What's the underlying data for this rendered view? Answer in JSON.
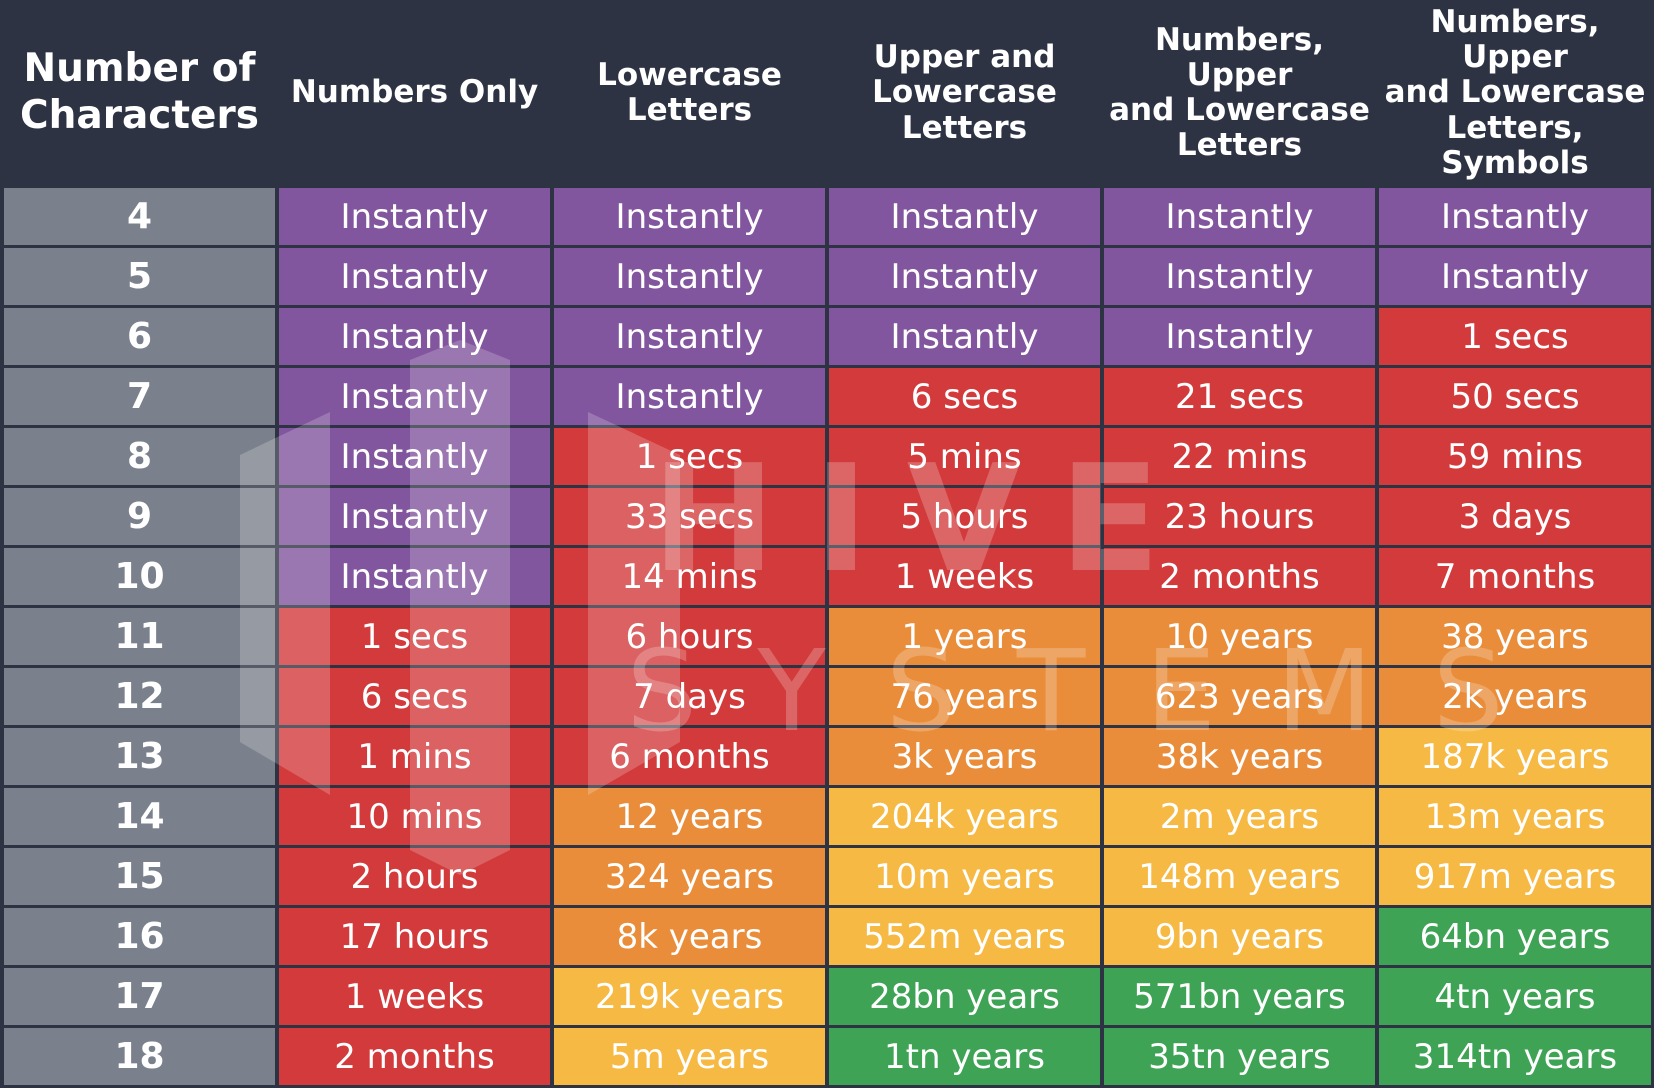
{
  "chart_data": {
    "type": "table",
    "columns": [
      "Number of\nCharacters",
      "Numbers Only",
      "Lowercase\nLetters",
      "Upper and\nLowercase\nLetters",
      "Numbers, Upper\nand Lowercase\nLetters",
      "Numbers, Upper\nand Lowercase\nLetters, Symbols"
    ],
    "rows": [
      {
        "chars": "4",
        "values": [
          "Instantly",
          "Instantly",
          "Instantly",
          "Instantly",
          "Instantly"
        ],
        "levels": [
          "instant",
          "instant",
          "instant",
          "instant",
          "instant"
        ]
      },
      {
        "chars": "5",
        "values": [
          "Instantly",
          "Instantly",
          "Instantly",
          "Instantly",
          "Instantly"
        ],
        "levels": [
          "instant",
          "instant",
          "instant",
          "instant",
          "instant"
        ]
      },
      {
        "chars": "6",
        "values": [
          "Instantly",
          "Instantly",
          "Instantly",
          "Instantly",
          "1 secs"
        ],
        "levels": [
          "instant",
          "instant",
          "instant",
          "instant",
          "red"
        ]
      },
      {
        "chars": "7",
        "values": [
          "Instantly",
          "Instantly",
          "6 secs",
          "21 secs",
          "50 secs"
        ],
        "levels": [
          "instant",
          "instant",
          "red",
          "red",
          "red"
        ]
      },
      {
        "chars": "8",
        "values": [
          "Instantly",
          "1 secs",
          "5 mins",
          "22 mins",
          "59 mins"
        ],
        "levels": [
          "instant",
          "red",
          "red",
          "red",
          "red"
        ]
      },
      {
        "chars": "9",
        "values": [
          "Instantly",
          "33 secs",
          "5 hours",
          "23 hours",
          "3 days"
        ],
        "levels": [
          "instant",
          "red",
          "red",
          "red",
          "red"
        ]
      },
      {
        "chars": "10",
        "values": [
          "Instantly",
          "14 mins",
          "1 weeks",
          "2 months",
          "7 months"
        ],
        "levels": [
          "instant",
          "red",
          "red",
          "red",
          "red"
        ]
      },
      {
        "chars": "11",
        "values": [
          "1 secs",
          "6 hours",
          "1 years",
          "10 years",
          "38 years"
        ],
        "levels": [
          "red",
          "red",
          "orange",
          "orange",
          "orange"
        ]
      },
      {
        "chars": "12",
        "values": [
          "6 secs",
          "7 days",
          "76 years",
          "623 years",
          "2k years"
        ],
        "levels": [
          "red",
          "red",
          "orange",
          "orange",
          "orange"
        ]
      },
      {
        "chars": "13",
        "values": [
          "1 mins",
          "6 months",
          "3k years",
          "38k years",
          "187k years"
        ],
        "levels": [
          "red",
          "red",
          "orange",
          "orange",
          "yellow"
        ]
      },
      {
        "chars": "14",
        "values": [
          "10 mins",
          "12 years",
          "204k years",
          "2m years",
          "13m years"
        ],
        "levels": [
          "red",
          "orange",
          "yellow",
          "yellow",
          "yellow"
        ]
      },
      {
        "chars": "15",
        "values": [
          "2 hours",
          "324 years",
          "10m years",
          "148m years",
          "917m years"
        ],
        "levels": [
          "red",
          "orange",
          "yellow",
          "yellow",
          "yellow"
        ]
      },
      {
        "chars": "16",
        "values": [
          "17 hours",
          "8k years",
          "552m years",
          "9bn years",
          "64bn years"
        ],
        "levels": [
          "red",
          "orange",
          "yellow",
          "yellow",
          "green"
        ]
      },
      {
        "chars": "17",
        "values": [
          "1 weeks",
          "219k years",
          "28bn years",
          "571bn years",
          "4tn years"
        ],
        "levels": [
          "red",
          "yellow",
          "green",
          "green",
          "green"
        ]
      },
      {
        "chars": "18",
        "values": [
          "2 months",
          "5m years",
          "1tn years",
          "35tn years",
          "314tn years"
        ],
        "levels": [
          "red",
          "yellow",
          "green",
          "green",
          "green"
        ]
      }
    ]
  },
  "colors": {
    "background": "#2d3343",
    "rowhead": "#7b818c",
    "instant": "#82569e",
    "red": "#d23a3b",
    "orange": "#e98d3b",
    "yellow": "#f6b944",
    "green": "#3fa356"
  },
  "watermark": {
    "line1": "HIVE",
    "line2": "SYSTEMS",
    "icon": "hive-systems-logo-icon"
  }
}
